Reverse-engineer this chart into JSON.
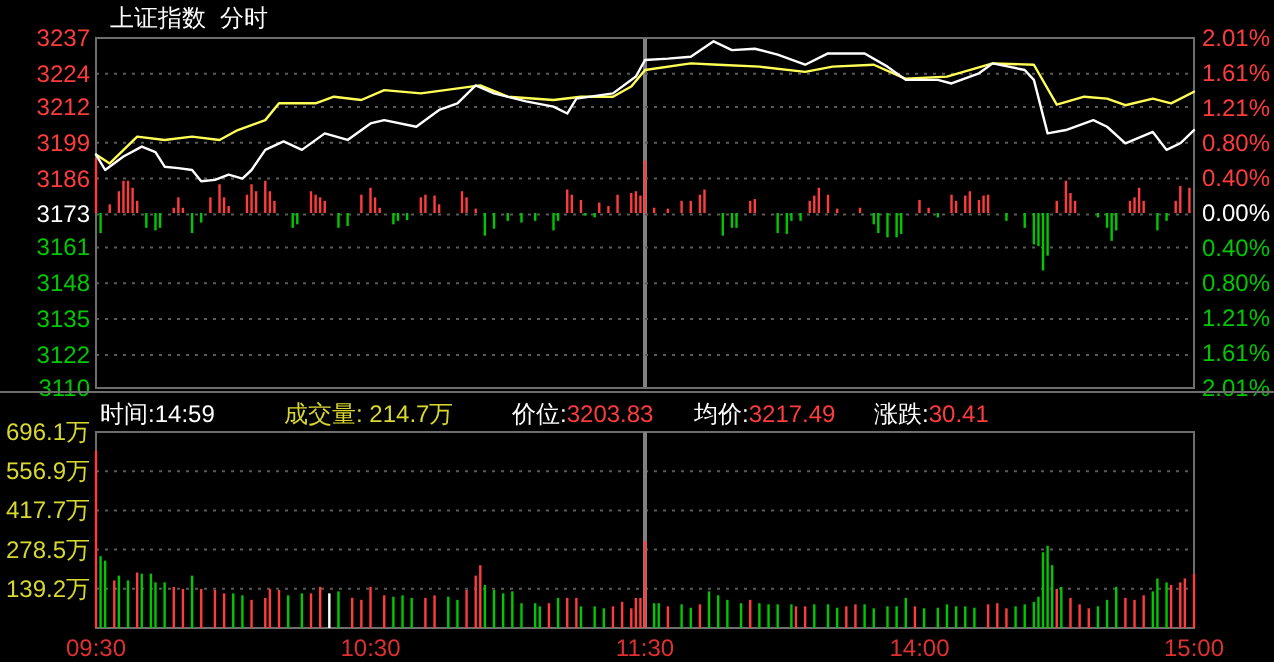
{
  "chart_data": [
    {
      "type": "line",
      "title": "上证指数",
      "subtitle": "分时",
      "categories": [
        null,
        null,
        null,
        null,
        null,
        null,
        null,
        null,
        null,
        null,
        null,
        null,
        null,
        null,
        null,
        null,
        null,
        null,
        null,
        null,
        null,
        null,
        null,
        null,
        null,
        null,
        null,
        null,
        null,
        null,
        null,
        null,
        null,
        null,
        null,
        null,
        null,
        null,
        null,
        null,
        null,
        null,
        null,
        null,
        null,
        null,
        null,
        null,
        null,
        null,
        null,
        null,
        null,
        null,
        null,
        null,
        null,
        null,
        null,
        null,
        null,
        null,
        null,
        null,
        null,
        null,
        null,
        null,
        null,
        null,
        null,
        null,
        null,
        null,
        null,
        null,
        null,
        null,
        null,
        null,
        null,
        null,
        null,
        null,
        null,
        null,
        null,
        null,
        null,
        null,
        null,
        null,
        null,
        null,
        null,
        null,
        null,
        null,
        null,
        null,
        null,
        null,
        null,
        null,
        null,
        null,
        null,
        null,
        null,
        null,
        null,
        null,
        null,
        null,
        null,
        null,
        null,
        null,
        null,
        null,
        null,
        null,
        null,
        null,
        null,
        null,
        null,
        null,
        null,
        null,
        null,
        null,
        null,
        null,
        null,
        null,
        null,
        null,
        null,
        null,
        null,
        null,
        null,
        null,
        null,
        null,
        null,
        null,
        null,
        null,
        null,
        null,
        null,
        null,
        null,
        null,
        null,
        null,
        null,
        null,
        null,
        null,
        null,
        null,
        null,
        null,
        null,
        null,
        null,
        null,
        null,
        null,
        null,
        null,
        null,
        null,
        null,
        null,
        null,
        null,
        null,
        null,
        null,
        null,
        null,
        null,
        null,
        null,
        null,
        null,
        null,
        null,
        null,
        null,
        null,
        null,
        null,
        null,
        null,
        null,
        null,
        null,
        null,
        null,
        null,
        null,
        null,
        null,
        null,
        null,
        null,
        null,
        null,
        null,
        null,
        null,
        null,
        null,
        null,
        null,
        null,
        null,
        null,
        null,
        null,
        null,
        null,
        null,
        null,
        null,
        null,
        null,
        null,
        null,
        null,
        null,
        null,
        null,
        null,
        null,
        null
      ],
      "ylim": [
        3110,
        3237
      ],
      "yticks": [
        3237,
        3224,
        3212,
        3199,
        3186,
        3173,
        3161,
        3148,
        3135,
        3122,
        3110
      ],
      "y2lim": [
        -2.01,
        2.01
      ],
      "y2ticks": [
        {
          "value": 2.01,
          "label": "2.01%"
        },
        {
          "value": 1.61,
          "label": "1.61%"
        },
        {
          "value": 1.21,
          "label": "1.21%"
        },
        {
          "value": 0.8,
          "label": "0.80%"
        },
        {
          "value": 0.4,
          "label": "0.40%"
        },
        {
          "value": 0,
          "label": "0.00%"
        },
        {
          "value": -0.4,
          "label": "0.40%"
        },
        {
          "value": -0.8,
          "label": "0.80%"
        },
        {
          "value": -1.21,
          "label": "1.21%"
        },
        {
          "value": -1.61,
          "label": "1.61%"
        },
        {
          "value": -2.01,
          "label": "2.01%"
        }
      ],
      "tick_labels": "y",
      "grid": "y",
      "series": [
        {
          "type": "bar",
          "axis": "y2",
          "color": "#ff3c3c",
          "values": [
            0.63,
            null,
            null,
            0.1,
            null,
            0.25,
            0.37,
            0.37,
            0.29,
            0.14,
            null,
            null,
            null,
            null,
            null,
            null,
            null,
            0.06,
            0.18,
            0.06,
            null,
            null,
            null,
            null,
            null,
            0.18,
            null,
            0.33,
            0.18,
            0.08,
            null,
            null,
            null,
            0.21,
            0.33,
            0.25,
            null,
            0.37,
            0.25,
            0.14,
            null,
            null,
            null,
            null,
            null,
            null,
            null,
            0.25,
            0.21,
            0.18,
            0.14,
            null,
            null,
            null,
            null,
            null,
            null,
            null,
            0.21,
            null,
            0.29,
            0.18,
            0.06,
            null,
            null,
            null,
            null,
            null,
            null,
            null,
            null,
            0.18,
            0.21,
            null,
            0.2,
            0.1,
            null,
            null,
            null,
            null,
            0.25,
            0.18,
            null,
            0.05,
            null,
            null,
            null,
            null,
            null,
            null,
            null,
            null,
            null,
            null,
            null,
            null,
            null,
            null,
            null,
            null,
            null,
            null,
            null,
            0.27,
            0.21,
            null,
            0.15,
            null,
            null,
            null,
            0.12,
            null,
            0.08,
            null,
            0.21,
            null,
            null,
            0.23,
            0.25,
            0.2,
            0.6,
            null,
            0.06,
            null,
            null,
            0.05,
            null,
            null,
            0.14,
            null,
            0.14,
            null,
            0.21,
            0.27,
            null,
            null,
            null,
            null,
            null,
            null,
            null,
            null,
            null,
            0.14,
            0.16,
            null,
            null,
            null,
            null,
            null,
            null,
            null,
            null,
            null,
            null,
            null,
            0.14,
            0.2,
            0.29,
            null,
            0.21,
            null,
            0.05,
            null,
            null,
            null,
            null,
            0.06,
            null,
            null,
            null,
            null,
            null,
            null,
            null,
            null,
            null,
            null,
            null,
            null,
            0.15,
            null,
            0.06,
            null,
            null,
            null,
            null,
            0.21,
            0.14,
            null,
            0.2,
            0.25,
            null,
            0.15,
            0.2,
            0.21,
            null,
            null,
            null,
            null,
            null,
            null,
            null,
            null,
            null,
            null,
            null,
            null,
            null,
            null,
            0.14,
            null,
            0.37,
            0.23,
            0.14,
            null,
            null,
            null,
            null,
            null,
            null,
            null,
            null,
            null,
            null,
            null,
            0.14,
            0.18,
            0.29,
            0.14,
            null,
            null,
            null,
            null,
            null,
            null,
            0.14,
            0.31,
            null,
            0.29,
            null
          ]
        },
        {
          "type": "bar",
          "axis": "y2",
          "color": "#00c800",
          "values": [
            null,
            -0.23,
            null,
            null,
            null,
            null,
            null,
            null,
            null,
            null,
            null,
            -0.17,
            null,
            -0.2,
            -0.17,
            null,
            null,
            null,
            null,
            null,
            null,
            -0.23,
            null,
            -0.11,
            null,
            null,
            null,
            null,
            null,
            null,
            null,
            null,
            null,
            null,
            null,
            null,
            null,
            null,
            null,
            null,
            null,
            null,
            null,
            -0.17,
            -0.13,
            null,
            null,
            null,
            null,
            null,
            null,
            null,
            null,
            -0.17,
            null,
            -0.15,
            null,
            null,
            null,
            null,
            null,
            null,
            null,
            null,
            null,
            -0.13,
            -0.09,
            null,
            -0.08,
            null,
            null,
            null,
            null,
            null,
            null,
            null,
            null,
            null,
            null,
            null,
            null,
            null,
            null,
            null,
            null,
            -0.26,
            null,
            -0.18,
            null,
            null,
            -0.09,
            null,
            null,
            -0.11,
            null,
            null,
            -0.09,
            null,
            null,
            null,
            -0.2,
            -0.09,
            null,
            null,
            null,
            null,
            null,
            -0.03,
            null,
            -0.05,
            null,
            null,
            null,
            null,
            null,
            null,
            null,
            null,
            null,
            null,
            null,
            null,
            null,
            null,
            null,
            null,
            null,
            null,
            null,
            null,
            null,
            null,
            null,
            null,
            null,
            null,
            null,
            -0.26,
            null,
            -0.17,
            -0.17,
            null,
            null,
            null,
            null,
            null,
            null,
            null,
            null,
            -0.23,
            null,
            -0.24,
            -0.09,
            null,
            -0.09,
            null,
            null,
            null,
            null,
            null,
            null,
            null,
            null,
            null,
            null,
            null,
            null,
            null,
            null,
            null,
            -0.13,
            -0.23,
            null,
            -0.28,
            null,
            -0.28,
            -0.24,
            null,
            null,
            null,
            null,
            null,
            null,
            null,
            -0.05,
            null,
            null,
            null,
            null,
            null,
            null,
            null,
            null,
            null,
            null,
            null,
            null,
            null,
            null,
            -0.09,
            null,
            null,
            null,
            -0.17,
            null,
            -0.36,
            -0.38,
            -0.66,
            -0.49,
            null,
            null,
            null,
            null,
            null,
            null,
            null,
            null,
            null,
            null,
            -0.05,
            null,
            -0.17,
            -0.32,
            -0.2,
            null,
            null,
            null,
            null,
            null,
            null,
            null,
            null,
            -0.2,
            null,
            -0.09,
            null,
            null,
            null,
            null,
            null,
            null
          ]
        },
        {
          "color": "#ffff55",
          "values": [
            3194.7,
            null,
            null,
            3191.5,
            null,
            null,
            null,
            null,
            null,
            3201.2,
            null,
            null,
            null,
            null,
            null,
            3200,
            null,
            null,
            null,
            null,
            null,
            3201.2,
            null,
            null,
            null,
            null,
            null,
            3200,
            null,
            null,
            null,
            3203.6,
            null,
            null,
            null,
            null,
            null,
            3207.2,
            null,
            null,
            3213.3,
            null,
            null,
            null,
            null,
            null,
            null,
            null,
            3213.3,
            null,
            null,
            null,
            3215.7,
            null,
            null,
            null,
            null,
            null,
            3214.5,
            null,
            null,
            null,
            null,
            3218.1,
            null,
            null,
            null,
            null,
            null,
            null,
            null,
            3216.9,
            null,
            null,
            null,
            null,
            null,
            null,
            null,
            null,
            null,
            null,
            null,
            null,
            3219.8,
            null,
            null,
            null,
            null,
            null,
            3215.7,
            null,
            null,
            null,
            null,
            null,
            null,
            null,
            null,
            null,
            3214.5,
            null,
            null,
            null,
            null,
            null,
            3215.7,
            null,
            null,
            null,
            null,
            null,
            null,
            3215.7,
            null,
            null,
            null,
            3219.4,
            null,
            null,
            3225.4,
            null,
            null,
            null,
            null,
            null,
            null,
            null,
            null,
            null,
            3227.8,
            null,
            null,
            null,
            null,
            null,
            3227.3,
            null,
            null,
            null,
            null,
            null,
            null,
            null,
            null,
            3226.6,
            null,
            null,
            null,
            null,
            null,
            null,
            null,
            null,
            null,
            3224.7,
            null,
            null,
            null,
            null,
            null,
            3226.6,
            null,
            null,
            null,
            null,
            null,
            null,
            null,
            null,
            3227.3,
            null,
            null,
            null,
            null,
            null,
            null,
            3222.2,
            null,
            null,
            null,
            null,
            null,
            null,
            null,
            null,
            3223,
            null,
            null,
            null,
            null,
            null,
            null,
            null,
            null,
            null,
            3227.8,
            null,
            null,
            null,
            null,
            null,
            null,
            null,
            null,
            3227.3,
            null,
            null,
            null,
            null,
            3212.8,
            null,
            null,
            null,
            null,
            null,
            3215.7,
            null,
            null,
            null,
            null,
            3215,
            null,
            null,
            null,
            3212.6,
            null,
            null,
            null,
            null,
            null,
            3215,
            null,
            null,
            null,
            3213.3,
            null,
            null,
            null,
            null,
            3217.5
          ]
        },
        {
          "color": "#ffffff",
          "values": [
            3194.7,
            null,
            3189.1,
            null,
            null,
            null,
            3194,
            null,
            null,
            null,
            3197.6,
            null,
            null,
            3195.6,
            null,
            3190.3,
            null,
            null,
            3189.8,
            null,
            null,
            3189.1,
            null,
            3185,
            null,
            null,
            3185.5,
            null,
            null,
            3187.4,
            null,
            null,
            3186,
            null,
            3189.1,
            null,
            null,
            3196.4,
            null,
            null,
            null,
            3199.5,
            null,
            null,
            null,
            3196.4,
            null,
            null,
            null,
            null,
            3202.4,
            null,
            null,
            null,
            null,
            3200,
            null,
            null,
            null,
            null,
            3206,
            null,
            null,
            3207.2,
            null,
            null,
            null,
            null,
            null,
            null,
            3204.8,
            null,
            null,
            null,
            null,
            3210.9,
            null,
            null,
            null,
            3213.3,
            null,
            null,
            null,
            3219.8,
            null,
            null,
            null,
            3216.9,
            null,
            null,
            null,
            null,
            null,
            null,
            3214,
            null,
            null,
            null,
            null,
            null,
            3212.1,
            null,
            null,
            3209.6,
            null,
            3215,
            null,
            null,
            null,
            null,
            null,
            null,
            null,
            3216.9,
            null,
            null,
            null,
            null,
            3223,
            null,
            3229,
            null,
            null,
            null,
            null,
            3229.5,
            null,
            null,
            null,
            null,
            3230.2,
            null,
            null,
            null,
            null,
            3235.8,
            null,
            null,
            null,
            3232.6,
            null,
            null,
            null,
            null,
            3233.1,
            null,
            null,
            null,
            null,
            3231,
            null,
            null,
            null,
            null,
            null,
            3227.3,
            null,
            null,
            null,
            null,
            3231.4,
            null,
            null,
            null,
            null,
            null,
            null,
            null,
            3231.4,
            null,
            null,
            null,
            null,
            3226.6,
            null,
            null,
            null,
            3221.8,
            null,
            null,
            null,
            null,
            null,
            null,
            3221.8,
            null,
            null,
            3220.5,
            null,
            null,
            null,
            null,
            null,
            3224.2,
            null,
            null,
            3227.8,
            null,
            null,
            null,
            null,
            null,
            null,
            3225.4,
            null,
            3221.8,
            null,
            null,
            3202.4,
            null,
            null,
            null,
            3203.6,
            null,
            null,
            null,
            null,
            null,
            3207.2,
            null,
            null,
            3204.8,
            null,
            null,
            null,
            3198.8,
            null,
            null,
            null,
            null,
            null,
            3202.9,
            null,
            null,
            3196.4,
            null,
            null,
            3198.8,
            null,
            null,
            3203.6
          ]
        }
      ]
    },
    {
      "type": "bar",
      "categories": [
        "09:30",
        null,
        null,
        null,
        null,
        null,
        null,
        null,
        null,
        null,
        null,
        null,
        null,
        null,
        null,
        null,
        null,
        null,
        null,
        null,
        null,
        null,
        null,
        null,
        null,
        null,
        null,
        null,
        null,
        null,
        null,
        null,
        null,
        null,
        null,
        null,
        null,
        null,
        null,
        null,
        null,
        null,
        null,
        null,
        null,
        null,
        null,
        null,
        null,
        null,
        null,
        null,
        null,
        null,
        null,
        null,
        null,
        null,
        null,
        null,
        "10:30",
        null,
        null,
        null,
        null,
        null,
        null,
        null,
        null,
        null,
        null,
        null,
        null,
        null,
        null,
        null,
        null,
        null,
        null,
        null,
        null,
        null,
        null,
        null,
        null,
        null,
        null,
        null,
        null,
        null,
        null,
        null,
        null,
        null,
        null,
        null,
        null,
        null,
        null,
        null,
        null,
        null,
        null,
        null,
        null,
        null,
        null,
        null,
        null,
        null,
        null,
        null,
        null,
        null,
        null,
        null,
        null,
        null,
        null,
        null,
        "11:30",
        null,
        null,
        null,
        null,
        null,
        null,
        null,
        null,
        null,
        null,
        null,
        null,
        null,
        null,
        null,
        null,
        null,
        null,
        null,
        null,
        null,
        null,
        null,
        null,
        null,
        null,
        null,
        null,
        null,
        null,
        null,
        null,
        null,
        null,
        null,
        null,
        null,
        null,
        null,
        null,
        null,
        null,
        null,
        null,
        null,
        null,
        null,
        null,
        null,
        null,
        null,
        null,
        null,
        null,
        null,
        null,
        null,
        null,
        null,
        "14:00",
        null,
        null,
        null,
        null,
        null,
        null,
        null,
        null,
        null,
        null,
        null,
        null,
        null,
        null,
        null,
        null,
        null,
        null,
        null,
        null,
        null,
        null,
        null,
        null,
        null,
        null,
        null,
        null,
        null,
        null,
        null,
        null,
        null,
        null,
        null,
        null,
        null,
        null,
        null,
        null,
        null,
        null,
        null,
        null,
        null,
        null,
        null,
        null,
        null,
        null,
        null,
        null,
        null,
        null,
        null,
        null,
        null,
        null,
        null,
        "15:00"
      ],
      "ylim": [
        0,
        696.1
      ],
      "yticks": [
        {
          "value": 696.1,
          "label": "696.1万"
        },
        {
          "value": 556.9,
          "label": "556.9万"
        },
        {
          "value": 417.7,
          "label": "417.7万"
        },
        {
          "value": 278.5,
          "label": "278.5万"
        },
        {
          "value": 139.2,
          "label": "139.2万"
        }
      ],
      "grid": "y",
      "ref_lines": [
        {
          "axis": "x",
          "value": "11:30",
          "color": "#808080"
        }
      ],
      "annotations": [
        "时间:14:59",
        "成交量: 214.7万",
        "价位:3203.83",
        "均价:3217.49",
        "涨跌:30.41"
      ],
      "series": [
        {
          "color": "#ff3c3c",
          "values": [
            629,
            null,
            null,
            null,
            169,
            null,
            null,
            null,
            null,
            197,
            null,
            null,
            null,
            null,
            null,
            null,
            null,
            146,
            null,
            139,
            null,
            null,
            null,
            139,
            null,
            null,
            135,
            null,
            123,
            null,
            null,
            null,
            null,
            null,
            100,
            null,
            null,
            107,
            139,
            null,
            135,
            null,
            null,
            null,
            null,
            null,
            null,
            123,
            null,
            146,
            null,
            null,
            null,
            null,
            null,
            null,
            107,
            null,
            100,
            null,
            146,
            null,
            null,
            116,
            null,
            null,
            null,
            null,
            null,
            null,
            null,
            null,
            107,
            null,
            116,
            null,
            null,
            null,
            null,
            null,
            null,
            135,
            null,
            186,
            223,
            null,
            null,
            null,
            null,
            null,
            null,
            null,
            null,
            null,
            null,
            null,
            null,
            null,
            null,
            88,
            null,
            null,
            null,
            107,
            null,
            107,
            null,
            null,
            null,
            null,
            null,
            null,
            null,
            77,
            null,
            93,
            null,
            70,
            107,
            107,
            309,
            null,
            null,
            null,
            null,
            77,
            null,
            null,
            null,
            null,
            null,
            null,
            84,
            null,
            null,
            null,
            null,
            null,
            null,
            null,
            null,
            null,
            null,
            100,
            null,
            null,
            null,
            null,
            null,
            null,
            null,
            null,
            null,
            77,
            null,
            77,
            null,
            null,
            null,
            null,
            null,
            null,
            null,
            null,
            77,
            null,
            84,
            null,
            null,
            null,
            null,
            null,
            null,
            null,
            null,
            null,
            null,
            null,
            null,
            77,
            null,
            null,
            null,
            null,
            null,
            null,
            null,
            null,
            null,
            null,
            null,
            null,
            null,
            null,
            null,
            84,
            null,
            88,
            null,
            70,
            null,
            null,
            null,
            null,
            null,
            null,
            null,
            null,
            null,
            null,
            139,
            null,
            null,
            107,
            null,
            84,
            null,
            70,
            null,
            null,
            null,
            null,
            null,
            null,
            null,
            107,
            null,
            100,
            null,
            116,
            null,
            null,
            null,
            null,
            null,
            153,
            null,
            162,
            176,
            null,
            193
          ]
        },
        {
          "color": "#00c800",
          "values": [
            null,
            255,
            239,
            null,
            null,
            186,
            null,
            169,
            null,
            null,
            193,
            null,
            193,
            162,
            null,
            162,
            null,
            null,
            null,
            null,
            null,
            186,
            null,
            null,
            null,
            null,
            null,
            null,
            null,
            null,
            123,
            null,
            116,
            null,
            null,
            null,
            null,
            null,
            null,
            null,
            null,
            null,
            116,
            null,
            null,
            123,
            null,
            null,
            null,
            null,
            null,
            null,
            null,
            130,
            null,
            null,
            null,
            null,
            null,
            null,
            null,
            null,
            null,
            null,
            null,
            111,
            null,
            116,
            null,
            107,
            null,
            null,
            null,
            null,
            null,
            null,
            null,
            111,
            null,
            100,
            null,
            null,
            null,
            null,
            null,
            153,
            null,
            135,
            null,
            123,
            null,
            130,
            null,
            88,
            null,
            null,
            88,
            77,
            null,
            null,
            null,
            107,
            null,
            null,
            null,
            null,
            77,
            null,
            null,
            77,
            null,
            70,
            null,
            null,
            null,
            null,
            null,
            null,
            null,
            null,
            null,
            null,
            88,
            88,
            null,
            null,
            null,
            null,
            84,
            null,
            72,
            null,
            null,
            null,
            130,
            null,
            116,
            null,
            100,
            null,
            null,
            88,
            null,
            null,
            null,
            88,
            null,
            84,
            null,
            84,
            null,
            null,
            84,
            null,
            null,
            null,
            null,
            84,
            null,
            null,
            84,
            null,
            72,
            null,
            null,
            null,
            null,
            null,
            84,
            null,
            70,
            null,
            null,
            77,
            null,
            77,
            null,
            107,
            null,
            null,
            null,
            70,
            null,
            null,
            72,
            null,
            84,
            null,
            77,
            null,
            77,
            null,
            72,
            null,
            null,
            null,
            null,
            null,
            null,
            null,
            null,
            77,
            null,
            84,
            null,
            93,
            111,
            269,
            292,
            223,
            null,
            146,
            null,
            null,
            null,
            null,
            null,
            null,
            null,
            77,
            null,
            100,
            null,
            146,
            null,
            null,
            null,
            null,
            null,
            null,
            null,
            130,
            176,
            null,
            162,
            null,
            null,
            null,
            null,
            null,
            null
          ]
        },
        {
          "color": "#ffffff",
          "values": [
            null,
            null,
            null,
            null,
            null,
            null,
            null,
            null,
            null,
            null,
            null,
            null,
            null,
            null,
            null,
            null,
            null,
            null,
            null,
            null,
            null,
            null,
            null,
            null,
            null,
            null,
            null,
            null,
            null,
            null,
            null,
            null,
            null,
            null,
            null,
            null,
            null,
            null,
            null,
            null,
            null,
            null,
            null,
            null,
            null,
            null,
            null,
            null,
            null,
            null,
            null,
            123,
            null,
            null,
            null,
            null,
            null,
            null,
            null,
            null,
            null,
            null,
            null,
            null,
            null,
            null,
            null,
            null,
            null,
            null,
            null,
            null,
            null,
            null,
            null,
            null,
            null,
            null,
            null,
            null,
            null,
            null,
            null,
            null,
            null,
            null,
            null,
            null,
            null,
            null,
            null,
            null,
            null,
            null,
            null,
            null,
            null,
            null,
            null,
            null,
            null,
            null,
            null,
            null,
            null,
            null,
            null,
            null,
            null,
            null,
            null,
            null,
            null,
            null,
            null,
            null,
            null,
            null,
            null,
            null,
            null,
            null,
            null,
            null,
            null,
            null,
            null,
            null,
            null,
            null,
            null,
            null,
            null,
            null,
            null,
            null,
            null,
            null,
            null,
            null,
            null,
            null,
            null,
            null,
            null,
            null,
            null,
            null,
            null,
            null,
            null,
            null,
            null,
            null,
            null,
            null,
            null,
            null,
            null,
            null,
            null,
            null,
            null,
            null,
            null,
            null,
            null,
            null,
            null,
            null,
            null,
            null,
            null,
            null,
            null,
            null,
            null,
            null,
            null,
            null,
            null,
            null,
            null,
            null,
            null,
            null,
            null,
            null,
            null,
            null,
            null,
            null,
            null,
            null,
            null,
            null,
            null,
            null,
            null,
            null,
            null,
            null,
            null,
            null,
            null,
            null,
            null,
            null,
            null,
            null,
            null,
            null,
            null,
            null,
            null,
            null,
            null,
            null,
            null,
            null,
            null,
            null,
            null,
            null,
            null,
            null,
            null,
            null,
            null,
            null,
            null,
            null,
            null,
            null,
            null,
            null,
            null,
            null,
            null,
            null,
            null
          ]
        }
      ]
    }
  ]
}
